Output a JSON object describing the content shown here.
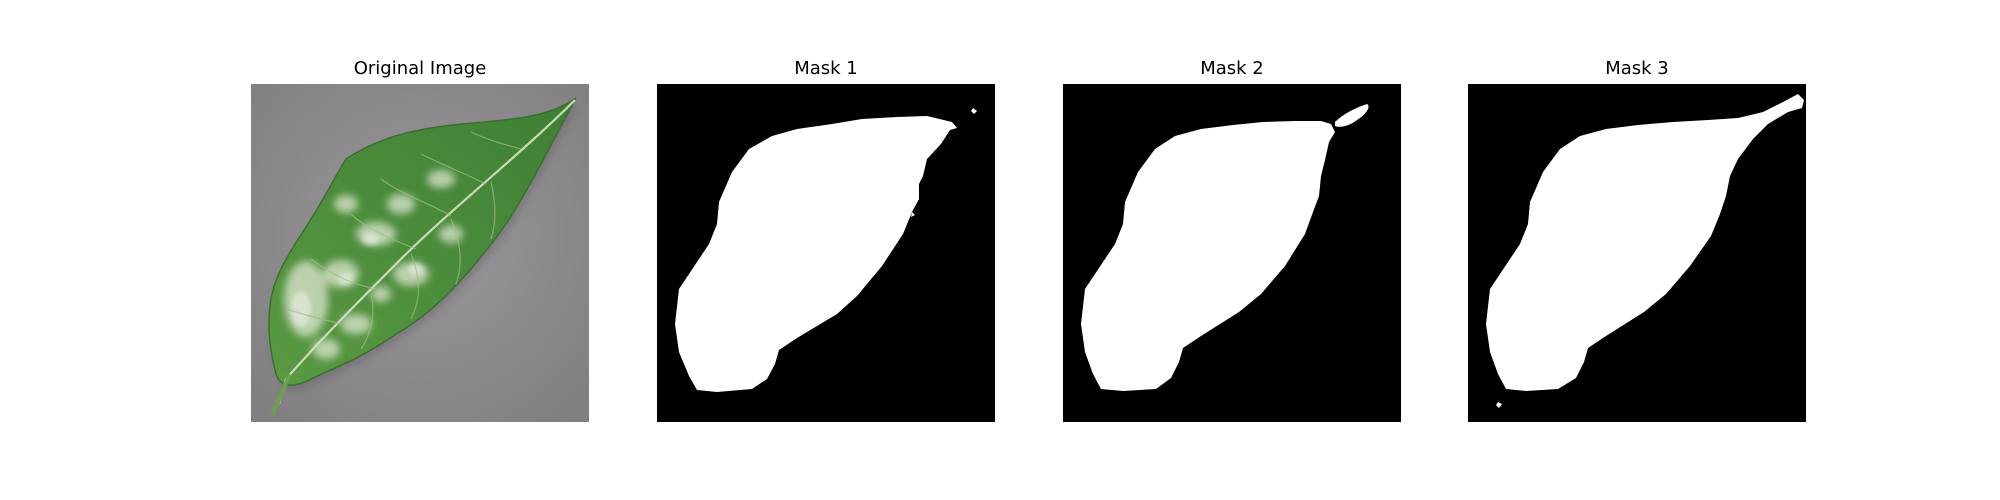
{
  "figure": {
    "panels": [
      {
        "title": "Original Image",
        "image": "photo of a green leaf with white powdery mildew patches on a gray background"
      },
      {
        "title": "Mask 1",
        "image": "binary segmentation mask, white leaf on black"
      },
      {
        "title": "Mask 2",
        "image": "binary segmentation mask, white leaf on black"
      },
      {
        "title": "Mask 3",
        "image": "binary segmentation mask, white leaf on black"
      }
    ],
    "colors": {
      "background": "#ffffff",
      "mask_foreground": "#ffffff",
      "mask_background": "#000000",
      "photo_background": "#8e8c8f",
      "leaf_green": "#4f8f3f",
      "mildew_white": "#d8e0c8"
    }
  }
}
